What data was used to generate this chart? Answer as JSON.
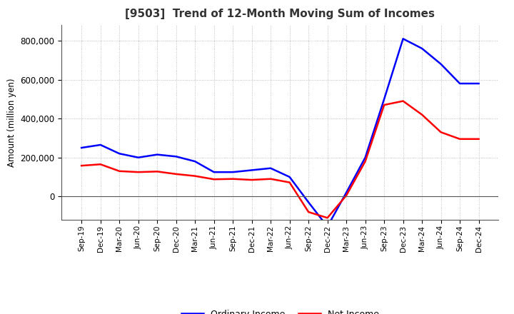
{
  "title": "[9503]  Trend of 12-Month Moving Sum of Incomes",
  "ylabel": "Amount (million yen)",
  "background_color": "#ffffff",
  "grid_color": "#b0b0b0",
  "ordinary_income_color": "#0000ff",
  "net_income_color": "#ff0000",
  "ordinary_income_label": "Ordinary Income",
  "net_income_label": "Net Income",
  "x_labels": [
    "Sep-19",
    "Dec-19",
    "Mar-20",
    "Jun-20",
    "Sep-20",
    "Dec-20",
    "Mar-21",
    "Jun-21",
    "Sep-21",
    "Dec-21",
    "Mar-22",
    "Jun-22",
    "Sep-22",
    "Dec-22",
    "Mar-23",
    "Jun-23",
    "Sep-23",
    "Dec-23",
    "Mar-24",
    "Jun-24",
    "Sep-24",
    "Dec-24"
  ],
  "ordinary_income": [
    250000,
    265000,
    220000,
    200000,
    215000,
    205000,
    180000,
    125000,
    125000,
    135000,
    145000,
    100000,
    -30000,
    -155000,
    20000,
    200000,
    500000,
    810000,
    760000,
    680000,
    580000,
    580000
  ],
  "net_income": [
    158000,
    165000,
    130000,
    125000,
    128000,
    115000,
    105000,
    88000,
    90000,
    85000,
    90000,
    72000,
    -80000,
    -110000,
    5000,
    180000,
    470000,
    490000,
    420000,
    330000,
    295000,
    295000
  ],
  "ylim": [
    -120000,
    880000
  ],
  "yticks": [
    0,
    200000,
    400000,
    600000,
    800000
  ],
  "title_color": "#333333",
  "title_fontsize": 11,
  "axis_fontsize": 8.5,
  "line_width": 1.8
}
